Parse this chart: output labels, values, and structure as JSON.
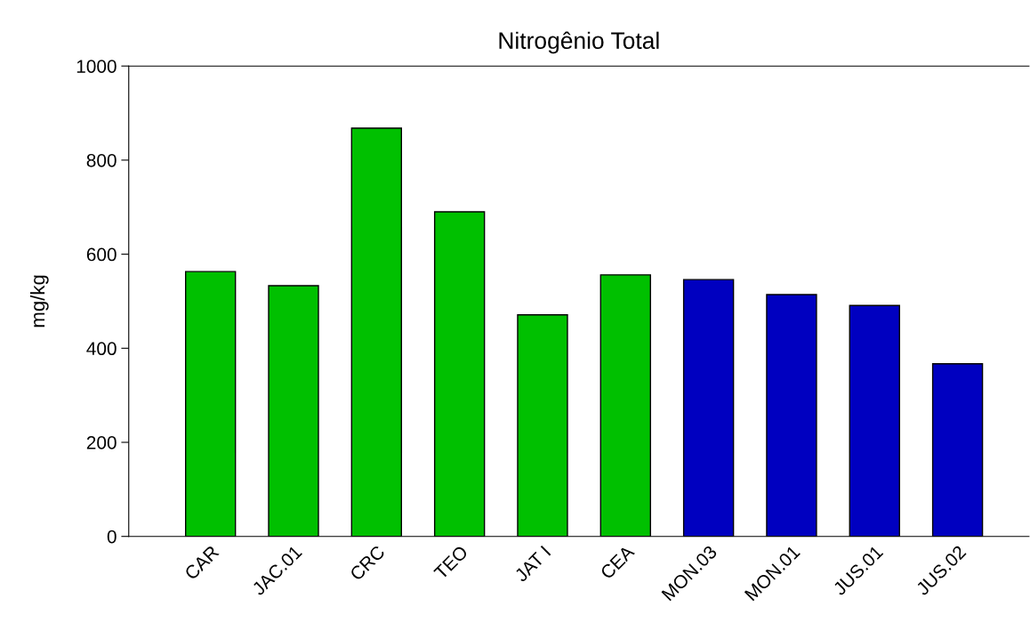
{
  "chart_data": {
    "type": "bar",
    "title": "Nitrogênio Total",
    "ylabel": "mg/kg",
    "categories": [
      "CAR",
      "JAC.01",
      "CRC",
      "TEO",
      "JAT I",
      "CEA",
      "MON.03",
      "MON.01",
      "JUS.01",
      "JUS.02"
    ],
    "values": [
      563,
      533,
      868,
      690,
      471,
      556,
      546,
      514,
      491,
      367
    ],
    "colors": [
      "#00c000",
      "#00c000",
      "#00c000",
      "#00c000",
      "#00c000",
      "#00c000",
      "#0000c0",
      "#0000c0",
      "#0000c0",
      "#0000c0"
    ],
    "ylim": [
      0,
      1000
    ],
    "yticks": [
      0,
      200,
      400,
      600,
      800,
      1000
    ],
    "grid": false,
    "legend": false
  }
}
